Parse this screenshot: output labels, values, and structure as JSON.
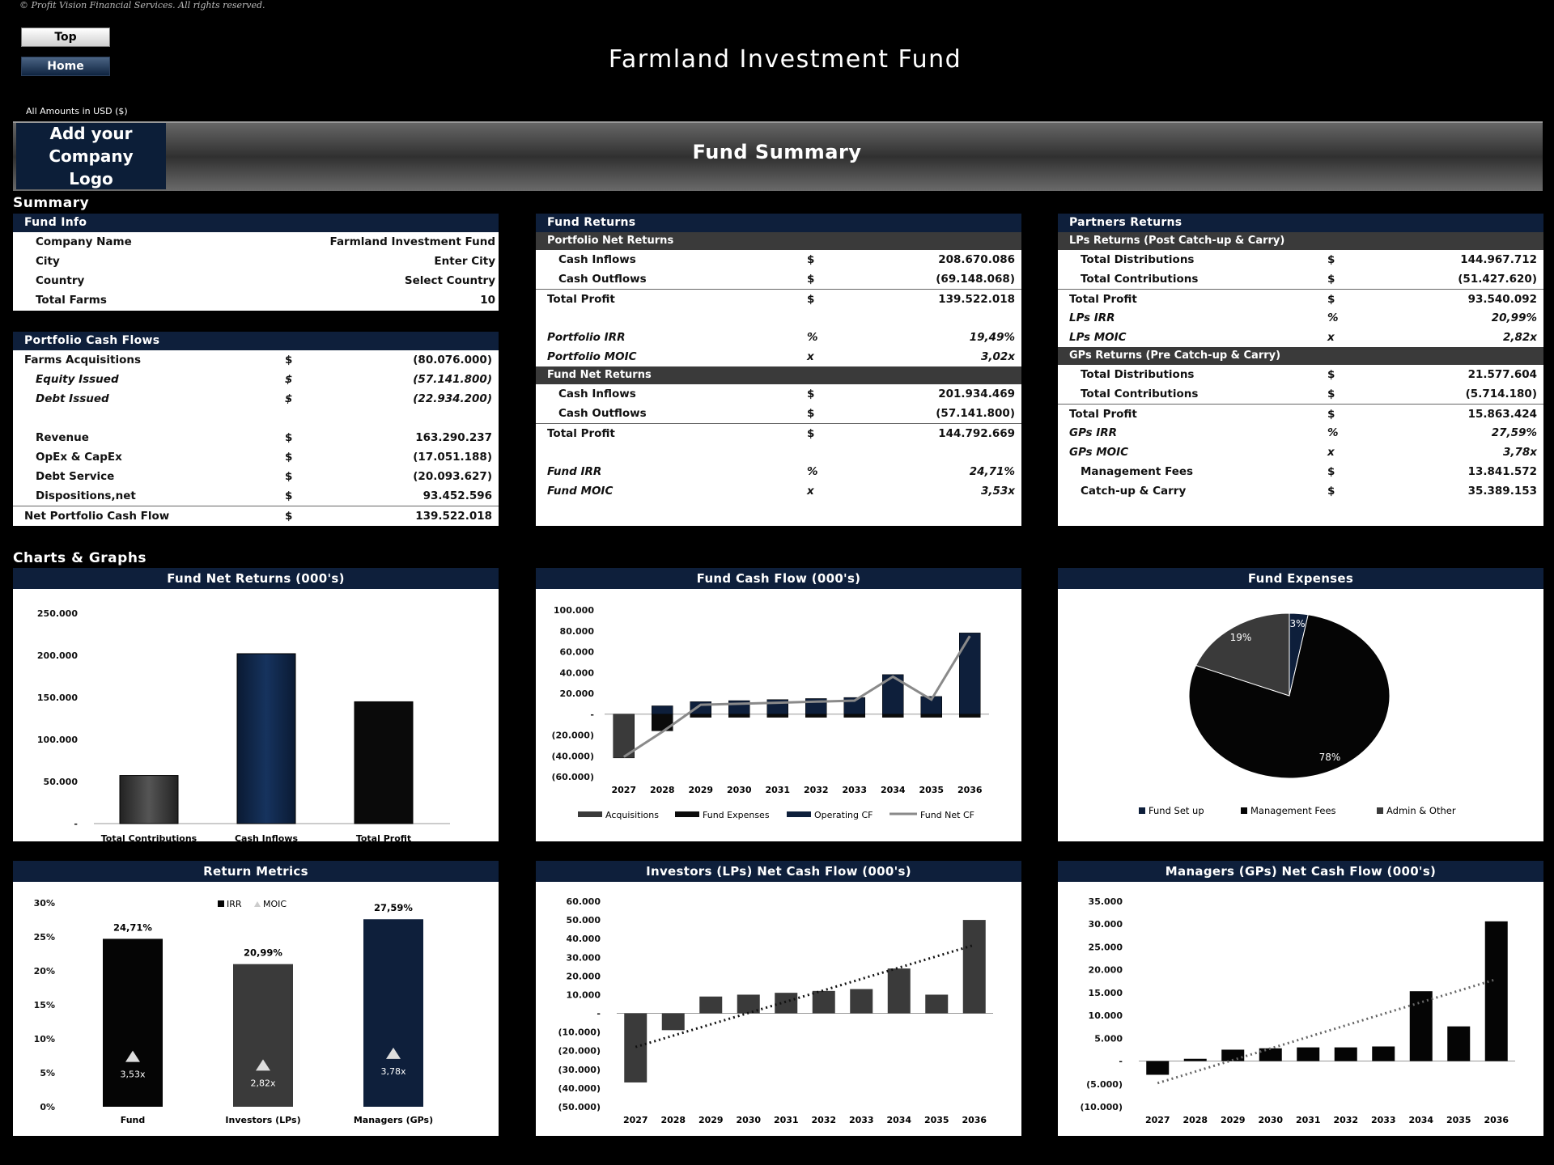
{
  "copyright": "© Profit Vision Financial Services. All rights reserved.",
  "nav": {
    "top": "Top",
    "home": "Home"
  },
  "title": "Farmland Investment Fund",
  "amounts_label": "All Amounts in  USD ($)",
  "logo_text": "Add your Company Logo",
  "banner_title": "Fund Summary",
  "summary_label": "Summary",
  "charts_label": "Charts & Graphs",
  "fund_info": {
    "title": "Fund Info",
    "rows": [
      {
        "label": "Company Name",
        "value": "Farmland Investment Fund"
      },
      {
        "label": "City",
        "value": "Enter City"
      },
      {
        "label": "Country",
        "value": "Select Country"
      },
      {
        "label": "Total Farms",
        "value": "10"
      }
    ]
  },
  "portfolio_cf": {
    "title": "Portfolio Cash Flows",
    "rows": [
      {
        "label": "Farms Acquisitions",
        "cur": "$",
        "value": "(80.076.000)"
      },
      {
        "label": "Equity Issued",
        "cur": "$",
        "value": "(57.141.800)"
      },
      {
        "label": "Debt Issued",
        "cur": "$",
        "value": "(22.934.200)"
      },
      {
        "label": "Revenue",
        "cur": "$",
        "value": "163.290.237"
      },
      {
        "label": "OpEx & CapEx",
        "cur": "$",
        "value": "(17.051.188)"
      },
      {
        "label": "Debt Service",
        "cur": "$",
        "value": "(20.093.627)"
      },
      {
        "label": "Dispositions,net",
        "cur": "$",
        "value": "93.452.596"
      },
      {
        "label": "Net Portfolio Cash Flow",
        "cur": "$",
        "value": "139.522.018"
      }
    ]
  },
  "fund_returns": {
    "title": "Fund Returns",
    "portfolio": {
      "title": "Portfolio Net Returns",
      "rows": [
        {
          "label": "Cash Inflows",
          "cur": "$",
          "value": "208.670.086"
        },
        {
          "label": "Cash Outflows",
          "cur": "$",
          "value": "(69.148.068)"
        },
        {
          "label": "Total Profit",
          "cur": "$",
          "value": "139.522.018"
        },
        {
          "label": "Portfolio IRR",
          "cur": "%",
          "value": "19,49%"
        },
        {
          "label": "Portfolio MOIC",
          "cur": "x",
          "value": "3,02x"
        }
      ]
    },
    "fund": {
      "title": "Fund Net Returns",
      "rows": [
        {
          "label": "Cash Inflows",
          "cur": "$",
          "value": "201.934.469"
        },
        {
          "label": "Cash Outflows",
          "cur": "$",
          "value": "(57.141.800)"
        },
        {
          "label": "Total Profit",
          "cur": "$",
          "value": "144.792.669"
        },
        {
          "label": "Fund IRR",
          "cur": "%",
          "value": "24,71%"
        },
        {
          "label": "Fund MOIC",
          "cur": "x",
          "value": "3,53x"
        }
      ]
    }
  },
  "partners": {
    "title": "Partners Returns",
    "lps": {
      "title": "LPs Returns (Post Catch-up & Carry)",
      "rows": [
        {
          "label": "Total Distributions",
          "cur": "$",
          "value": "144.967.712"
        },
        {
          "label": "Total Contributions",
          "cur": "$",
          "value": "(51.427.620)"
        },
        {
          "label": "Total Profit",
          "cur": "$",
          "value": "93.540.092"
        },
        {
          "label": "LPs IRR",
          "cur": "%",
          "value": "20,99%"
        },
        {
          "label": "LPs MOIC",
          "cur": "x",
          "value": "2,82x"
        }
      ]
    },
    "gps": {
      "title": "GPs Returns (Pre Catch-up & Carry)",
      "rows": [
        {
          "label": "Total Distributions",
          "cur": "$",
          "value": "21.577.604"
        },
        {
          "label": "Total Contributions",
          "cur": "$",
          "value": "(5.714.180)"
        },
        {
          "label": "Total Profit",
          "cur": "$",
          "value": "15.863.424"
        },
        {
          "label": "GPs IRR",
          "cur": "%",
          "value": "27,59%"
        },
        {
          "label": "GPs MOIC",
          "cur": "x",
          "value": "3,78x"
        },
        {
          "label": "Management Fees",
          "cur": "$",
          "value": "13.841.572"
        },
        {
          "label": "Catch-up & Carry",
          "cur": "$",
          "value": "35.389.153"
        }
      ]
    }
  },
  "colors": {
    "navy": "#0e1f3b",
    "grey": "#3a3a3a",
    "black": "#0b0b0b"
  },
  "chart_data": [
    {
      "id": "fund-net-returns",
      "type": "bar",
      "title": "Fund Net Returns (000's)",
      "categories": [
        "Total Contributions",
        "Cash Inflows",
        "Total Profit"
      ],
      "values": [
        57142,
        201934,
        144793
      ],
      "ylim": [
        0,
        250000
      ],
      "yticks": [
        "-",
        "50.000",
        "100.000",
        "150.000",
        "200.000",
        "250.000"
      ]
    },
    {
      "id": "fund-cash-flow",
      "type": "bar",
      "title": "Fund Cash Flow (000's)",
      "categories": [
        "2027",
        "2028",
        "2029",
        "2030",
        "2031",
        "2032",
        "2033",
        "2034",
        "2035",
        "2036"
      ],
      "series": [
        {
          "name": "Acquisitions",
          "values": [
            -42000,
            0,
            0,
            0,
            0,
            0,
            0,
            0,
            0,
            0
          ]
        },
        {
          "name": "Fund Expenses",
          "values": [
            0,
            -16000,
            -3000,
            -3000,
            -3000,
            -3000,
            -3000,
            -3000,
            -3000,
            -3000
          ]
        },
        {
          "name": "Operating CF",
          "values": [
            0,
            8000,
            12000,
            13000,
            14000,
            15000,
            16000,
            38000,
            17000,
            78000
          ]
        },
        {
          "name": "Fund Net CF",
          "values": [
            -41000,
            -17000,
            9000,
            10000,
            11000,
            12000,
            13000,
            36000,
            14000,
            75000
          ]
        }
      ],
      "ylim": [
        -60000,
        100000
      ],
      "yticks": [
        "(60.000)",
        "(40.000)",
        "(20.000)",
        "-",
        "20.000",
        "40.000",
        "60.000",
        "80.000",
        "100.000"
      ]
    },
    {
      "id": "fund-expenses",
      "type": "pie",
      "title": "Fund Expenses",
      "categories": [
        "Fund Set up",
        "Management Fees",
        "Admin & Other"
      ],
      "values": [
        3,
        78,
        19
      ],
      "labels": [
        "3%",
        "78%",
        "19%"
      ]
    },
    {
      "id": "return-metrics",
      "type": "bar",
      "title": "Return Metrics",
      "categories": [
        "Fund",
        "Investors (LPs)",
        "Managers (GPs)"
      ],
      "series": [
        {
          "name": "IRR",
          "values": [
            24.71,
            20.99,
            27.59
          ],
          "labels": [
            "24,71%",
            "20,99%",
            "27,59%"
          ]
        },
        {
          "name": "MOIC",
          "values": [
            3.53,
            2.82,
            3.78
          ],
          "labels": [
            "3,53x",
            "2,82x",
            "3,78x"
          ]
        }
      ],
      "ylim": [
        0,
        30
      ],
      "yticks": [
        "0%",
        "5%",
        "10%",
        "15%",
        "20%",
        "25%",
        "30%"
      ]
    },
    {
      "id": "lps-net-cf",
      "type": "bar",
      "title": "Investors (LPs) Net Cash Flow (000's)",
      "categories": [
        "2027",
        "2028",
        "2029",
        "2030",
        "2031",
        "2032",
        "2033",
        "2034",
        "2035",
        "2036"
      ],
      "values": [
        -37000,
        -9000,
        9000,
        10000,
        11000,
        12000,
        13000,
        24000,
        10000,
        50000
      ],
      "ylim": [
        -50000,
        60000
      ],
      "yticks": [
        "(50.000)",
        "(40.000)",
        "(30.000)",
        "(20.000)",
        "(10.000)",
        "-",
        "10.000",
        "20.000",
        "30.000",
        "40.000",
        "50.000",
        "60.000"
      ]
    },
    {
      "id": "gps-net-cf",
      "type": "bar",
      "title": "Managers (GPs) Net Cash Flow (000's)",
      "categories": [
        "2027",
        "2028",
        "2029",
        "2030",
        "2031",
        "2032",
        "2033",
        "2034",
        "2035",
        "2036"
      ],
      "values": [
        -3000,
        500,
        2500,
        2800,
        3000,
        3000,
        3200,
        15300,
        7600,
        30600
      ],
      "ylim": [
        -10000,
        35000
      ],
      "yticks": [
        "(10.000)",
        "(5.000)",
        "-",
        "5.000",
        "10.000",
        "15.000",
        "20.000",
        "25.000",
        "30.000",
        "35.000"
      ]
    }
  ]
}
